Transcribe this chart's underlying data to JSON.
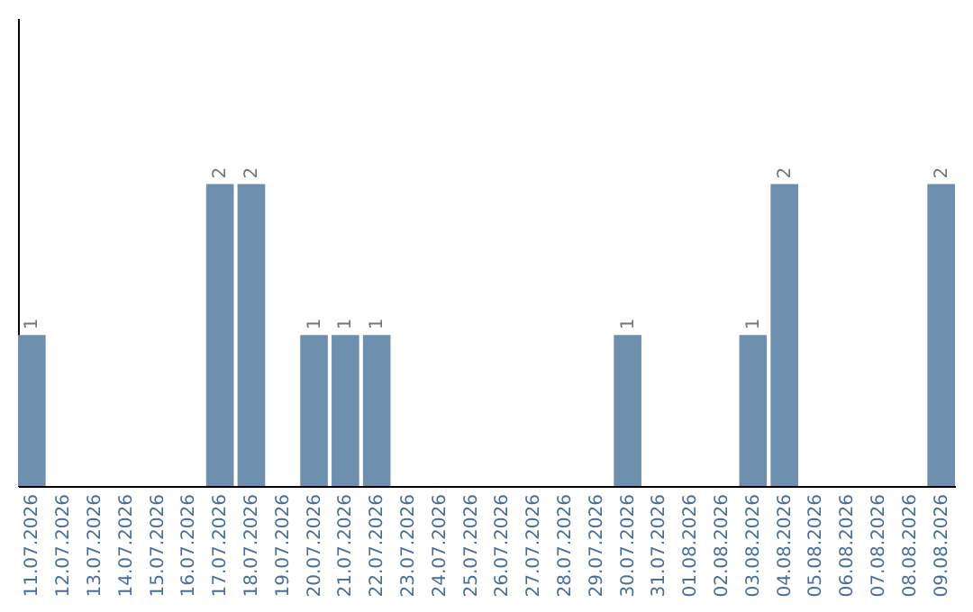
{
  "chart_data": {
    "type": "bar",
    "categories": [
      "11.07.2026",
      "12.07.2026",
      "13.07.2026",
      "14.07.2026",
      "15.07.2026",
      "16.07.2026",
      "17.07.2026",
      "18.07.2026",
      "19.07.2026",
      "20.07.2026",
      "21.07.2026",
      "22.07.2026",
      "23.07.2026",
      "24.07.2026",
      "25.07.2026",
      "26.07.2026",
      "27.07.2026",
      "28.07.2026",
      "29.07.2026",
      "30.07.2026",
      "31.07.2026",
      "01.08.2026",
      "02.08.2026",
      "03.08.2026",
      "04.08.2026",
      "05.08.2026",
      "06.08.2026",
      "07.08.2026",
      "08.08.2026",
      "09.08.2026"
    ],
    "values": [
      1,
      0,
      0,
      0,
      0,
      0,
      2,
      2,
      0,
      1,
      1,
      1,
      0,
      0,
      0,
      0,
      0,
      0,
      0,
      1,
      0,
      0,
      0,
      1,
      2,
      0,
      0,
      0,
      0,
      2
    ],
    "value_labels": [
      "1",
      null,
      null,
      null,
      null,
      null,
      "2",
      "2",
      null,
      "1",
      "1",
      "1",
      null,
      null,
      null,
      null,
      null,
      null,
      null,
      "1",
      null,
      null,
      null,
      "1",
      "2",
      null,
      null,
      null,
      null,
      "2"
    ],
    "color": "#6e8fad",
    "ylim": [
      0,
      3.1
    ],
    "tick_labels": "x",
    "grid": false
  }
}
